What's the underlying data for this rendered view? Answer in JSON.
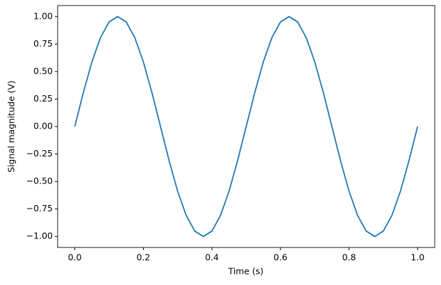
{
  "chart_data": {
    "type": "line",
    "x_label": "Time (s)",
    "y_label": "Signal magnitude (V)",
    "x": [
      0,
      0.025,
      0.05,
      0.075,
      0.1,
      0.125,
      0.15,
      0.175,
      0.2,
      0.225,
      0.25,
      0.275,
      0.3,
      0.325,
      0.35,
      0.375,
      0.4,
      0.425,
      0.45,
      0.475,
      0.5,
      0.525,
      0.55,
      0.575,
      0.6,
      0.625,
      0.65,
      0.675,
      0.7,
      0.725,
      0.75,
      0.775,
      0.8,
      0.825,
      0.85,
      0.875,
      0.9,
      0.925,
      0.95,
      0.975,
      1
    ],
    "series": [
      {
        "color": "#1f77b4",
        "values": [
          0,
          0.309,
          0.588,
          0.809,
          0.951,
          1,
          0.951,
          0.809,
          0.588,
          0.309,
          0,
          -0.309,
          -0.588,
          -0.809,
          -0.951,
          -1,
          -0.951,
          -0.809,
          -0.588,
          -0.309,
          0,
          0.309,
          0.588,
          0.809,
          0.951,
          1,
          0.951,
          0.809,
          0.588,
          0.309,
          0,
          -0.309,
          -0.588,
          -0.809,
          -0.951,
          -1,
          -0.951,
          -0.809,
          -0.588,
          -0.309,
          0
        ]
      }
    ],
    "xlim": [
      -0.05,
      1.05
    ],
    "ylim": [
      -1.1,
      1.1
    ],
    "xticks": [
      {
        "value": 0,
        "label": "0.0"
      },
      0.2,
      0.4,
      0.6,
      0.8,
      {
        "value": 1,
        "label": "1.0"
      }
    ],
    "yticks": [
      {
        "value": -1,
        "label": "−1.00"
      },
      {
        "value": -0.75,
        "label": "−0.75"
      },
      {
        "value": -0.5,
        "label": "−0.50"
      },
      {
        "value": -0.25,
        "label": "−0.25"
      },
      {
        "value": 0,
        "label": "0.00"
      },
      {
        "value": 0.25,
        "label": "0.25"
      },
      {
        "value": 0.5,
        "label": "0.50"
      },
      {
        "value": 0.75,
        "label": "0.75"
      },
      {
        "value": 1,
        "label": "1.00"
      }
    ],
    "grid": false
  }
}
